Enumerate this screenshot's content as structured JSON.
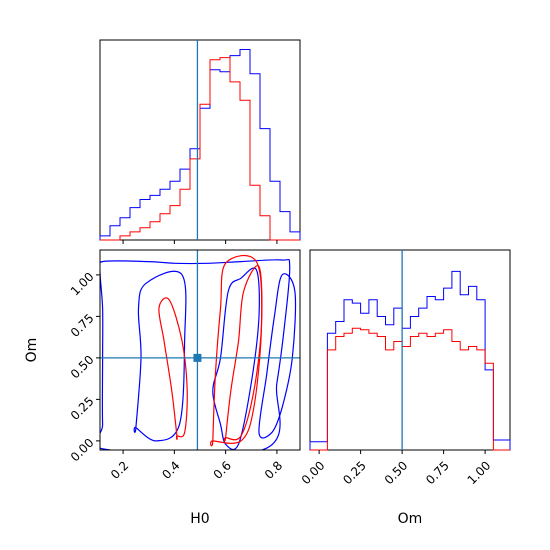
{
  "chart_data": [
    {
      "type": "histogram",
      "panel": "H0 marginal",
      "x_range": [
        0.11,
        0.89
      ],
      "series": [
        {
          "name": "",
          "color": "#0000ff",
          "bin_edges": [
            0.11,
            0.149,
            0.188,
            0.227,
            0.266,
            0.305,
            0.344,
            0.383,
            0.422,
            0.461,
            0.5,
            0.539,
            0.578,
            0.617,
            0.656,
            0.695,
            0.734,
            0.773,
            0.812,
            0.851,
            0.89
          ],
          "counts": [
            2,
            7,
            11,
            16,
            20,
            22,
            25,
            29,
            35,
            45,
            65,
            84,
            83,
            91,
            94,
            82,
            55,
            29,
            14,
            4
          ]
        },
        {
          "name": "",
          "color": "#ff0000",
          "bin_edges": [
            0.11,
            0.149,
            0.188,
            0.227,
            0.266,
            0.305,
            0.344,
            0.383,
            0.422,
            0.461,
            0.5,
            0.539,
            0.578,
            0.617,
            0.656,
            0.695,
            0.734,
            0.773,
            0.812,
            0.851,
            0.89
          ],
          "counts": [
            0,
            0,
            2,
            4,
            6,
            9,
            13,
            17,
            25,
            40,
            67,
            89,
            90,
            78,
            69,
            27,
            12,
            0,
            0,
            0
          ]
        }
      ],
      "truth_line": {
        "x": 0.49,
        "color": "#1f77b4"
      }
    },
    {
      "type": "contour",
      "panel": "H0 vs Om",
      "xlabel": "H0",
      "ylabel": "Om",
      "x_range": [
        0.11,
        0.89
      ],
      "y_range": [
        -0.055,
        1.15
      ],
      "x_ticks": [
        "0.2",
        "0.4",
        "0.6",
        "0.8"
      ],
      "y_ticks": [
        "0.00",
        "0.25",
        "0.50",
        "0.75",
        "1.00"
      ],
      "series": [
        {
          "name": "",
          "color": "#0000ff",
          "contours": [
            [
              [
                0.75,
                -0.05
              ],
              [
                0.8,
                0.35
              ],
              [
                0.83,
                0.7
              ],
              [
                0.85,
                1.05
              ],
              [
                0.82,
                1.09
              ],
              [
                0.66,
                1.08
              ],
              [
                0.53,
                1.07
              ],
              [
                0.4,
                1.07
              ],
              [
                0.3,
                1.08
              ],
              [
                0.12,
                1.08
              ],
              [
                0.11,
                1.02
              ],
              [
                0.12,
                0.8
              ],
              [
                0.12,
                0.5
              ],
              [
                0.12,
                0.1
              ],
              [
                0.13,
                -0.05
              ]
            ],
            [
              [
                0.65,
                -0.02
              ],
              [
                0.7,
                0.35
              ],
              [
                0.73,
                0.75
              ],
              [
                0.72,
                1.03
              ],
              [
                0.66,
                0.98
              ],
              [
                0.61,
                0.9
              ],
              [
                0.58,
                0.5
              ],
              [
                0.55,
                0.3
              ],
              [
                0.58,
                0.1
              ],
              [
                0.6,
                -0.02
              ]
            ],
            [
              [
                0.25,
                0.08
              ],
              [
                0.27,
                0.5
              ],
              [
                0.26,
                0.8
              ],
              [
                0.29,
                0.95
              ],
              [
                0.43,
                1.0
              ],
              [
                0.44,
                0.6
              ],
              [
                0.42,
                0.1
              ],
              [
                0.33,
                0.0
              ],
              [
                0.25,
                0.08
              ]
            ],
            [
              [
                0.73,
                0.05
              ],
              [
                0.76,
                0.4
              ],
              [
                0.79,
                0.75
              ],
              [
                0.82,
                1.0
              ],
              [
                0.87,
                0.9
              ],
              [
                0.86,
                0.5
              ],
              [
                0.82,
                0.2
              ],
              [
                0.78,
                0.05
              ]
            ]
          ]
        },
        {
          "name": "",
          "color": "#ff0000",
          "contours": [
            [
              [
                0.6,
                0.02
              ],
              [
                0.62,
                0.3
              ],
              [
                0.65,
                0.6
              ],
              [
                0.67,
                0.9
              ],
              [
                0.73,
                1.05
              ],
              [
                0.74,
                0.7
              ],
              [
                0.71,
                0.3
              ],
              [
                0.66,
                0.03
              ],
              [
                0.6,
                0.02
              ]
            ],
            [
              [
                0.41,
                0.03
              ],
              [
                0.39,
                0.3
              ],
              [
                0.36,
                0.6
              ],
              [
                0.34,
                0.8
              ],
              [
                0.38,
                0.85
              ],
              [
                0.43,
                0.6
              ],
              [
                0.45,
                0.3
              ],
              [
                0.44,
                0.05
              ],
              [
                0.41,
                0.03
              ]
            ],
            [
              [
                0.55,
                0.0
              ],
              [
                0.56,
                0.4
              ],
              [
                0.58,
                0.8
              ],
              [
                0.6,
                1.07
              ],
              [
                0.72,
                1.08
              ],
              [
                0.74,
                0.7
              ],
              [
                0.71,
                0.2
              ],
              [
                0.66,
                0.0
              ],
              [
                0.55,
                0.0
              ]
            ]
          ]
        }
      ],
      "truth_point": {
        "x": 0.49,
        "y": 0.5,
        "color": "#1f77b4"
      }
    },
    {
      "type": "histogram",
      "panel": "Om marginal",
      "xlabel": "Om",
      "x_range": [
        -0.055,
        1.15
      ],
      "x_ticks": [
        "0.00",
        "0.25",
        "0.50",
        "0.75",
        "1.00"
      ],
      "series": [
        {
          "name": "",
          "color": "#0000ff",
          "bin_edges": [
            -0.055,
            0.0,
            0.05,
            0.1,
            0.15,
            0.2,
            0.25,
            0.3,
            0.35,
            0.4,
            0.45,
            0.5,
            0.55,
            0.6,
            0.65,
            0.7,
            0.75,
            0.8,
            0.85,
            0.9,
            0.95,
            1.0,
            1.05,
            1.1,
            1.15
          ],
          "counts": [
            5,
            5,
            70,
            77,
            90,
            88,
            82,
            90,
            80,
            75,
            85,
            73,
            80,
            85,
            92,
            90,
            97,
            107,
            93,
            98,
            90,
            48,
            6,
            6
          ]
        },
        {
          "name": "",
          "color": "#ff0000",
          "bin_edges": [
            -0.055,
            0.0,
            0.05,
            0.1,
            0.15,
            0.2,
            0.25,
            0.3,
            0.35,
            0.4,
            0.45,
            0.5,
            0.55,
            0.6,
            0.65,
            0.7,
            0.75,
            0.8,
            0.85,
            0.9,
            0.95,
            1.0,
            1.05,
            1.1,
            1.15
          ],
          "counts": [
            0,
            0,
            60,
            68,
            70,
            73,
            72,
            70,
            68,
            60,
            65,
            62,
            68,
            70,
            68,
            70,
            72,
            65,
            60,
            62,
            60,
            52,
            0,
            0
          ]
        }
      ],
      "truth_line": {
        "x": 0.5,
        "color": "#1f77b4"
      }
    }
  ]
}
